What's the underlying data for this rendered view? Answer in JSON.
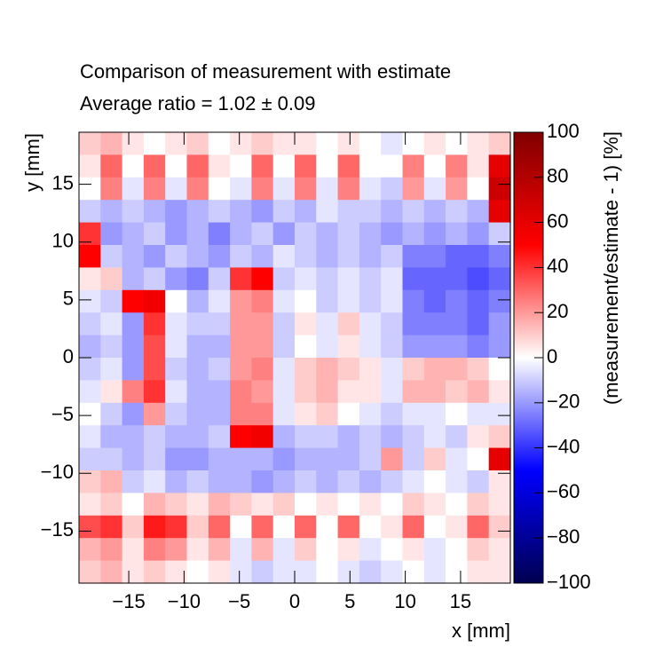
{
  "chart_data": {
    "type": "heatmap",
    "title": "Comparison of measurement with estimate",
    "subtitle": "Average ratio = 1.02 ± 0.09",
    "x_label": "x [mm]",
    "y_label": "y [mm]",
    "colorbar_label": "(measurement/estimate - 1) [%]",
    "xlim": [
      -19.5,
      19.5
    ],
    "ylim": [
      -19.5,
      19.5
    ],
    "zlim": [
      -100,
      100
    ],
    "xticks": [
      {
        "value": -15,
        "label": "−15"
      },
      {
        "value": -10,
        "label": "−10"
      },
      {
        "value": -5,
        "label": "−5"
      },
      0,
      5,
      10,
      15
    ],
    "yticks": [
      {
        "value": -15,
        "label": "−15"
      },
      {
        "value": -10,
        "label": "−10"
      },
      {
        "value": -5,
        "label": "−5"
      },
      0,
      5,
      10,
      15
    ],
    "zticks": [
      {
        "value": -100,
        "label": "−100"
      },
      {
        "value": -80,
        "label": "−80"
      },
      {
        "value": -60,
        "label": "−60"
      },
      {
        "value": -40,
        "label": "−40"
      },
      {
        "value": -20,
        "label": "−20"
      },
      0,
      20,
      40,
      60,
      80,
      100
    ],
    "z": [
      [
        10,
        15,
        5,
        0,
        5,
        10,
        0,
        5,
        10,
        5,
        5,
        0,
        5,
        0,
        -5,
        0,
        5,
        0,
        5,
        10
      ],
      [
        5,
        30,
        0,
        30,
        0,
        30,
        5,
        0,
        30,
        0,
        30,
        0,
        30,
        0,
        0,
        25,
        0,
        25,
        5,
        60
      ],
      [
        0,
        25,
        -5,
        25,
        -5,
        25,
        0,
        -5,
        25,
        -5,
        25,
        -5,
        25,
        -5,
        -10,
        20,
        -5,
        20,
        0,
        70
      ],
      [
        -10,
        -15,
        -10,
        -15,
        -20,
        -15,
        -10,
        -15,
        -20,
        -10,
        -15,
        -5,
        -10,
        -10,
        -15,
        -10,
        -15,
        -10,
        -15,
        60
      ],
      [
        40,
        -20,
        -15,
        -10,
        -20,
        -15,
        -25,
        -15,
        -10,
        -20,
        -10,
        -15,
        -10,
        -15,
        -20,
        -15,
        -20,
        -15,
        -20,
        -10
      ],
      [
        50,
        -10,
        -15,
        -20,
        -10,
        -15,
        -20,
        -10,
        -15,
        -5,
        -10,
        -15,
        -10,
        -15,
        -10,
        -25,
        -25,
        -30,
        -30,
        -25
      ],
      [
        5,
        10,
        -15,
        -10,
        -20,
        -25,
        -10,
        40,
        50,
        -10,
        -5,
        -10,
        -5,
        -10,
        -5,
        -30,
        -30,
        -30,
        -35,
        -30
      ],
      [
        -5,
        -10,
        50,
        55,
        0,
        -15,
        -5,
        20,
        25,
        -5,
        0,
        -10,
        -5,
        -10,
        -5,
        -25,
        -30,
        -25,
        -30,
        -25
      ],
      [
        -10,
        -5,
        -20,
        40,
        -5,
        -10,
        -10,
        20,
        20,
        -10,
        5,
        -5,
        10,
        -5,
        -10,
        -25,
        -25,
        -25,
        -30,
        -20
      ],
      [
        -15,
        -10,
        -20,
        35,
        -5,
        -15,
        -15,
        20,
        20,
        -10,
        0,
        -5,
        5,
        -5,
        -10,
        -20,
        -20,
        -20,
        -25,
        -20
      ],
      [
        -10,
        -5,
        -20,
        35,
        -10,
        -15,
        -10,
        20,
        25,
        -5,
        10,
        15,
        10,
        5,
        -5,
        10,
        15,
        15,
        10,
        0
      ],
      [
        -5,
        5,
        25,
        40,
        -5,
        -15,
        -15,
        25,
        20,
        -5,
        10,
        15,
        5,
        5,
        -5,
        15,
        15,
        10,
        15,
        5
      ],
      [
        0,
        -10,
        -20,
        20,
        -10,
        -15,
        -15,
        25,
        25,
        -5,
        5,
        10,
        0,
        -5,
        -10,
        -5,
        -5,
        0,
        -5,
        -5
      ],
      [
        -5,
        -15,
        -15,
        -10,
        -15,
        -15,
        -10,
        50,
        55,
        -15,
        -10,
        -10,
        -15,
        -10,
        -15,
        -10,
        -5,
        -10,
        5,
        10
      ],
      [
        -10,
        -10,
        -15,
        -10,
        -20,
        -20,
        -15,
        -15,
        -15,
        -20,
        -15,
        -15,
        -15,
        -10,
        20,
        -10,
        10,
        -5,
        0,
        60
      ],
      [
        10,
        15,
        -10,
        -5,
        -15,
        -10,
        -15,
        -15,
        -20,
        -15,
        -10,
        -15,
        -10,
        -15,
        -10,
        -5,
        0,
        -5,
        -10,
        5
      ],
      [
        5,
        10,
        0,
        15,
        10,
        5,
        15,
        10,
        5,
        10,
        0,
        5,
        0,
        5,
        0,
        10,
        5,
        0,
        10,
        5
      ],
      [
        35,
        40,
        10,
        45,
        40,
        10,
        30,
        0,
        30,
        0,
        30,
        0,
        30,
        0,
        5,
        30,
        0,
        5,
        30,
        10
      ],
      [
        15,
        20,
        5,
        25,
        20,
        5,
        15,
        -5,
        15,
        -5,
        10,
        0,
        5,
        -5,
        0,
        5,
        -5,
        0,
        10,
        5
      ],
      [
        10,
        15,
        5,
        10,
        5,
        0,
        5,
        -5,
        -10,
        -5,
        -5,
        0,
        -5,
        -10,
        -5,
        0,
        -5,
        0,
        5,
        5
      ]
    ]
  }
}
